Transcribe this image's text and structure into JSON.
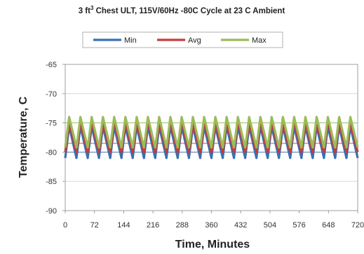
{
  "chart_data": {
    "type": "line",
    "title_main": "3 ft",
    "title_sup": "3",
    "title_rest": " Chest ULT, 115V/60Hz -80C Cycle at 23 C Ambient",
    "xlabel": "Time, Minutes",
    "ylabel": "Temperature, C",
    "xlim": [
      0,
      720
    ],
    "ylim": [
      -90,
      -65
    ],
    "x_ticks": [
      "0",
      "72",
      "144",
      "216",
      "288",
      "360",
      "432",
      "504",
      "576",
      "648",
      "720"
    ],
    "y_ticks": [
      "-65",
      "-70",
      "-75",
      "-80",
      "-85",
      "-90"
    ],
    "grid": "horizontal",
    "legend_position": "top-center",
    "cycles": 26,
    "series": [
      {
        "name": "Min",
        "color": "#3a6fb3",
        "low": -81,
        "high": -75.6,
        "mean": -80
      },
      {
        "name": "Avg",
        "color": "#c43c3a",
        "low": -80,
        "high": -74.8,
        "mean": -78.5
      },
      {
        "name": "Max",
        "color": "#9bbb59",
        "low": -79.2,
        "high": -74,
        "mean": -75
      }
    ]
  }
}
